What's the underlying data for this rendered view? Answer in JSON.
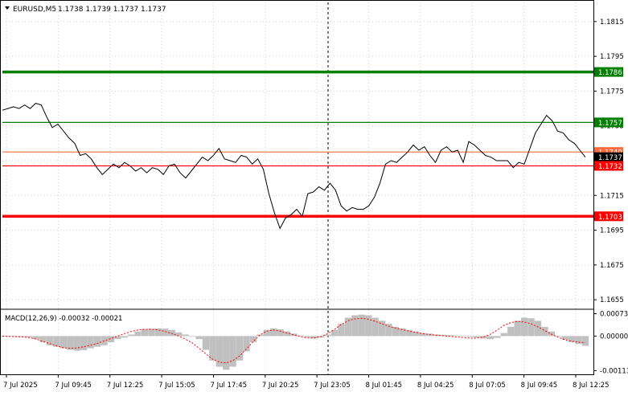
{
  "header": {
    "symbol": "EURUSD,M5",
    "ohlc": "1.1738 1.1739 1.1737 1.1737",
    "macd_label": "MACD(12,26,9) -0.00032 -0.00021"
  },
  "colors": {
    "background": "#ffffff",
    "price_line": "#000000",
    "grid": "#c8c8c8",
    "green_level": "#008000",
    "red_level": "#ff0000",
    "current_price_label": "#000000",
    "macd_hist": "#c0c0c0",
    "macd_signal": "#ff0000"
  },
  "chart_data": [
    {
      "type": "line",
      "title": "EURUSD,M5",
      "x_ticks": [
        "7 Jul 2025",
        "7 Jul 09:45",
        "7 Jul 12:25",
        "7 Jul 15:05",
        "7 Jul 17:45",
        "7 Jul 20:25",
        "7 Jul 23:05",
        "8 Jul 01:45",
        "8 Jul 04:25",
        "8 Jul 07:05",
        "8 Jul 09:45",
        "8 Jul 12:25"
      ],
      "y_ticks": [
        1.1815,
        1.1795,
        1.1775,
        1.1755,
        1.1735,
        1.1715,
        1.1695,
        1.1675,
        1.1655
      ],
      "ylim": [
        1.165,
        1.1826
      ],
      "grid": true,
      "levels": [
        {
          "value": 1.1786,
          "label": "1.1786",
          "color": "#008000",
          "style": "thick"
        },
        {
          "value": 1.1757,
          "label": "1.1757",
          "color": "#008000",
          "style": "thin"
        },
        {
          "value": 1.174,
          "label": "1.1740",
          "color": "#ff6a3c",
          "style": "thin"
        },
        {
          "value": 1.1737,
          "label": "1.1737",
          "color": "#000000",
          "style": "current"
        },
        {
          "value": 1.1732,
          "label": "1.1732",
          "color": "#ff0000",
          "style": "thin"
        },
        {
          "value": 1.1703,
          "label": "1.1703",
          "color": "#ff0000",
          "style": "thick"
        }
      ],
      "series": [
        {
          "values": [
            1.1764,
            1.1765,
            1.1766,
            1.1765,
            1.1767,
            1.1765,
            1.1768,
            1.1767,
            1.176,
            1.1754,
            1.1756,
            1.1752,
            1.1748,
            1.1745,
            1.1738,
            1.1739,
            1.1736,
            1.1731,
            1.1727,
            1.173,
            1.1733,
            1.1731,
            1.1734,
            1.1732,
            1.1729,
            1.1731,
            1.1728,
            1.1731,
            1.173,
            1.1727,
            1.1732,
            1.1733,
            1.1728,
            1.1725,
            1.1729,
            1.1733,
            1.1737,
            1.1735,
            1.1738,
            1.1742,
            1.1736,
            1.1735,
            1.1734,
            1.1738,
            1.1737,
            1.1733,
            1.1736,
            1.173,
            1.1716,
            1.1705,
            1.1696,
            1.1702,
            1.1704,
            1.1707,
            1.1703,
            1.1716,
            1.1717,
            1.172,
            1.1718,
            1.1722,
            1.1718,
            1.1709,
            1.1706,
            1.1708,
            1.1707,
            1.1707,
            1.1709,
            1.1714,
            1.1722,
            1.1733,
            1.1735,
            1.1734,
            1.1737,
            1.174,
            1.1744,
            1.1741,
            1.1743,
            1.1738,
            1.1734,
            1.1741,
            1.1743,
            1.174,
            1.1741,
            1.1734,
            1.1746,
            1.1744,
            1.1741,
            1.1738,
            1.1737,
            1.1735,
            1.1735,
            1.1735,
            1.1731,
            1.1734,
            1.1733,
            1.1742,
            1.1751,
            1.1756,
            1.1761,
            1.1758,
            1.1752,
            1.1751,
            1.1747,
            1.1745,
            1.1741,
            1.1737
          ]
        }
      ]
    },
    {
      "type": "area",
      "title": "MACD(12,26,9) -0.00032 -0.00021",
      "y_ticks": [
        0.00073,
        0.0,
        -0.00113
      ],
      "ylim": [
        -0.00125,
        0.00085
      ],
      "series": [
        {
          "name": "MACD",
          "values": [
            -1e-05,
            -2e-05,
            -3e-05,
            -3e-05,
            -4e-05,
            -0.0001,
            -0.0002,
            -0.0003,
            -0.00035,
            -0.0004,
            -0.00045,
            -0.00048,
            -0.00046,
            -0.0004,
            -0.00035,
            -0.0003,
            -0.0002,
            -0.0001,
            -5e-05,
            5e-05,
            0.00015,
            0.00022,
            0.00024,
            0.00025,
            0.00024,
            0.0002,
            0.00012,
            5e-05,
            -2e-05,
            -0.0001,
            -0.00045,
            -0.0008,
            -0.001,
            -0.0011,
            -0.001,
            -0.0008,
            -0.0005,
            -0.0002,
            5e-05,
            0.0002,
            0.00025,
            0.00022,
            0.00015,
            8e-05,
            2e-05,
            -4e-05,
            -8e-05,
            -5e-05,
            5e-05,
            0.0002,
            0.0004,
            0.0006,
            0.00068,
            0.0007,
            0.00068,
            0.0006,
            0.0005,
            0.0004,
            0.0003,
            0.00025,
            0.0002,
            0.00015,
            0.0001,
            8e-05,
            5e-05,
            4e-05,
            3e-05,
            2e-05,
            0.0,
            -3e-05,
            -5e-05,
            -8e-05,
            -0.0001,
            -6e-05,
            0.0001,
            0.0003,
            0.0005,
            0.0006,
            0.00058,
            0.0005,
            0.0003,
            0.00015,
            0.0,
            -0.00012,
            -0.0002,
            -0.00026,
            -0.00032
          ]
        },
        {
          "name": "Signal",
          "values": [
            0.0,
            -1e-05,
            -2e-05,
            -3e-05,
            -5e-05,
            -0.0001,
            -0.00018,
            -0.00025,
            -0.00032,
            -0.00038,
            -0.0004,
            -0.00039,
            -0.00035,
            -0.0003,
            -0.00024,
            -0.00016,
            -8e-05,
            0.0,
            8e-05,
            0.00015,
            0.0002,
            0.00022,
            0.00022,
            0.0002,
            0.00015,
            8e-05,
            0.0,
            -0.0001,
            -0.00022,
            -0.0004,
            -0.00058,
            -0.00075,
            -0.00085,
            -0.00088,
            -0.0008,
            -0.00065,
            -0.00042,
            -0.00018,
            4e-05,
            0.00016,
            0.0002,
            0.00016,
            0.0001,
            4e-05,
            -2e-05,
            -6e-05,
            -6e-05,
            -2e-05,
            8e-05,
            0.00022,
            0.00038,
            0.0005,
            0.00056,
            0.00058,
            0.00055,
            0.00048,
            0.0004,
            0.00032,
            0.00026,
            0.00021,
            0.00016,
            0.00012,
            8e-05,
            5e-05,
            3e-05,
            1e-05,
            -1e-05,
            -3e-05,
            -5e-05,
            -7e-05,
            -7e-05,
            -3e-05,
            6e-05,
            0.0002,
            0.00035,
            0.00044,
            0.00048,
            0.00046,
            0.0004,
            0.0003,
            0.00018,
            6e-05,
            -4e-05,
            -0.00012,
            -0.00017,
            -0.0002,
            -0.00021
          ]
        }
      ]
    }
  ]
}
